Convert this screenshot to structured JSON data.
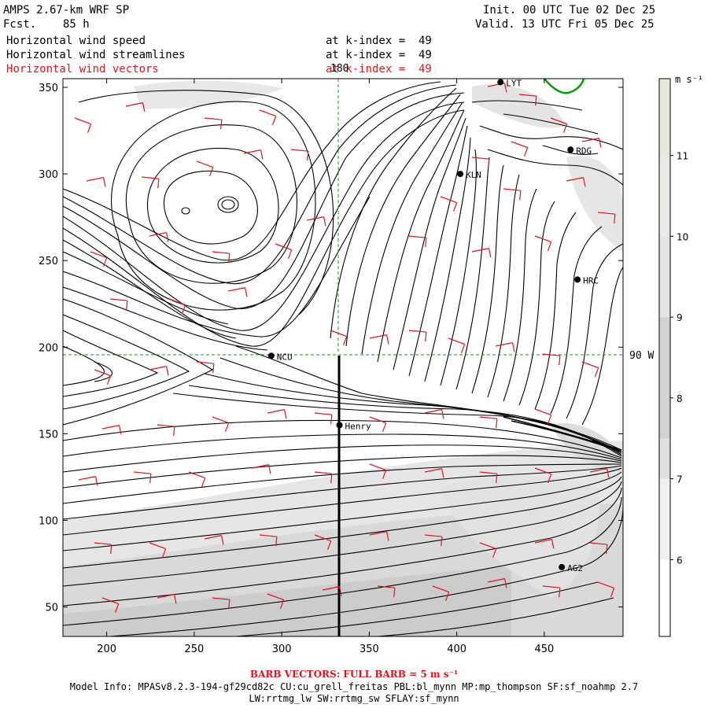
{
  "header": {
    "model": "AMPS 2.67-km WRF SP",
    "fcst_label": "Fcst.",
    "fcst_value": "85 h",
    "init": "Init. 00 UTC Tue 02 Dec 25",
    "valid": "Valid. 13 UTC Fri 05 Dec 25",
    "fields": [
      {
        "name": "Horizontal wind speed",
        "level": "at k-index =  49"
      },
      {
        "name": "Horizontal wind streamlines",
        "level": "at k-index =  49"
      },
      {
        "name": "Horizontal wind vectors",
        "level": "at k-index =  49"
      }
    ]
  },
  "map": {
    "x_ticks": [
      "200",
      "250",
      "300",
      "350",
      "400",
      "450"
    ],
    "x_tick_values": [
      200,
      250,
      300,
      350,
      400,
      450
    ],
    "x_range": [
      175,
      495
    ],
    "y_ticks": [
      "50",
      "100",
      "150",
      "200",
      "250",
      "300",
      "350"
    ],
    "y_tick_values": [
      50,
      100,
      150,
      200,
      250,
      300,
      350
    ],
    "y_range": [
      33,
      355
    ],
    "meridian_label": "180",
    "parallel_label": "90 W",
    "stations": [
      {
        "name": "LYT",
        "x": 425,
        "y": 353
      },
      {
        "name": "RDG",
        "x": 465,
        "y": 314
      },
      {
        "name": "KLN",
        "x": 402,
        "y": 300
      },
      {
        "name": "HRC",
        "x": 469,
        "y": 239
      },
      {
        "name": "NCU",
        "x": 294,
        "y": 195
      },
      {
        "name": "Henry",
        "x": 333,
        "y": 155
      },
      {
        "name": "AG2",
        "x": 460,
        "y": 73
      }
    ]
  },
  "colorbar": {
    "unit": "m s⁻¹",
    "labels": [
      "11",
      "10",
      "9",
      "8",
      "7",
      "6"
    ],
    "label_values": [
      11,
      10,
      9,
      8,
      7,
      6
    ],
    "range": [
      5.05,
      11.95
    ],
    "colors": [
      "#ffffff",
      "#f0f0f0",
      "#e0e0e0",
      "#d2d2d2",
      "#d2d2d2",
      "#e4e4e4",
      "#eaeae6",
      "#e8e8da"
    ]
  },
  "footer": {
    "barb_note": "BARB VECTORS:  FULL BARB = 5 m s⁻¹",
    "model_info_1": "Model Info: MPASv8.2.3-194-gf29cd82c CU:cu_grell_freitas PBL:bl_mynn MP:mp_thompson SF:sf_noahmp 2.7",
    "model_info_2": "LW:rrtmg_lw SW:rrtmg_sw SFLAY:sf_mynn"
  },
  "colors": {
    "barb": "#e0141e",
    "coast": "#00a000",
    "grid": "#2a8a2a"
  }
}
